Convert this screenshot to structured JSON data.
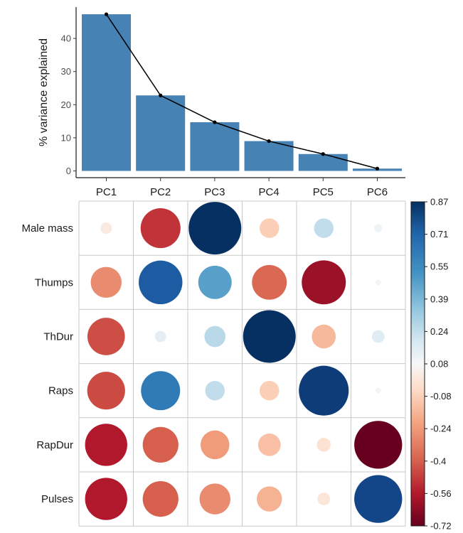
{
  "chart_data": [
    {
      "type": "bar",
      "ylabel": "% variance explained",
      "categories": [
        "PC1",
        "PC2",
        "PC3",
        "PC4",
        "PC5",
        "PC6"
      ],
      "values": [
        47.3,
        22.8,
        14.7,
        9.0,
        5.1,
        0.7
      ],
      "line_overlay": true,
      "ylim": [
        0,
        48
      ],
      "yticks": [
        0,
        10,
        20,
        30,
        40
      ],
      "bar_color": "#4682b4",
      "grid": false
    },
    {
      "type": "heatmap",
      "style": "correlation circles",
      "columns": [
        "PC1",
        "PC2",
        "PC3",
        "PC4",
        "PC5",
        "PC6"
      ],
      "rows": [
        "Male mass",
        "Thumps",
        "ThDur",
        "Raps",
        "RapDur",
        "Pulses"
      ],
      "values": [
        [
          -0.04,
          -0.5,
          0.87,
          -0.12,
          0.12,
          0.02
        ],
        [
          -0.3,
          0.6,
          0.35,
          -0.38,
          -0.61,
          0.01
        ],
        [
          -0.44,
          0.04,
          0.14,
          0.87,
          -0.18,
          0.05
        ],
        [
          -0.45,
          0.48,
          0.12,
          -0.12,
          0.78,
          0.01
        ],
        [
          -0.56,
          -0.4,
          -0.26,
          -0.16,
          -0.06,
          -0.72
        ],
        [
          -0.56,
          -0.4,
          -0.3,
          -0.2,
          -0.05,
          0.72
        ]
      ],
      "colorbar": {
        "min": -0.72,
        "max": 0.87,
        "ticks": [
          "0.87",
          "0.71",
          "0.55",
          "0.39",
          "0.24",
          "0.08",
          "-0.08",
          "-0.24",
          "-0.4",
          "-0.56",
          "-0.72"
        ]
      }
    }
  ]
}
